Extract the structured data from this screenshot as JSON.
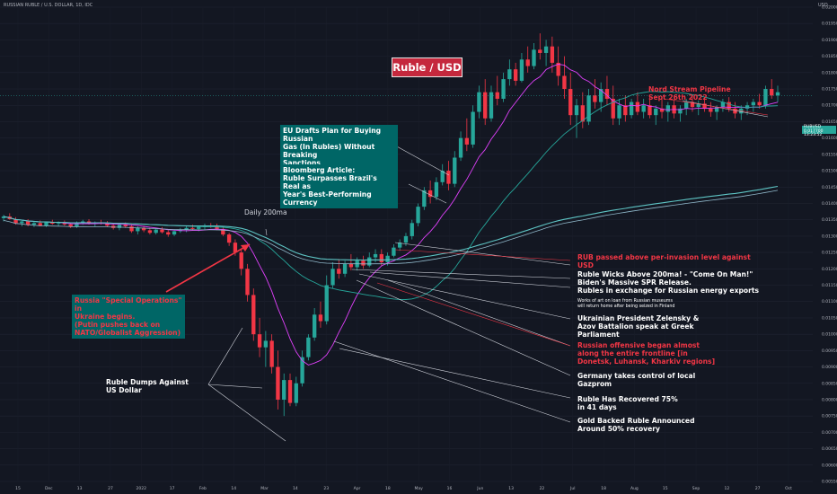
{
  "header": {
    "symbol_line": "RUSSIAN RUBLE / U.S. DOLLAR, 1D, IDC",
    "currency": "USD"
  },
  "title": "Ruble / USD",
  "price_tag": {
    "line1": "RUBUSD",
    "line2": "0.017700",
    "line3": "13:23:52"
  },
  "colors": {
    "up": "#26a69a",
    "down": "#f23645",
    "ma200": "#5ec4c4",
    "ma_pink": "#e040fb",
    "ma_teal": "#26a69a",
    "bg": "#131722"
  },
  "chart_data": {
    "type": "candlestick",
    "ylabels": [
      "0.020000",
      "0.019500",
      "0.019000",
      "0.018500",
      "0.018000",
      "0.017500",
      "0.017000",
      "0.016500",
      "0.016000",
      "0.015500",
      "0.015000",
      "0.014500",
      "0.014000",
      "0.013500",
      "0.013000",
      "0.012500",
      "0.012000",
      "0.011500",
      "0.011000",
      "0.010500",
      "0.010000",
      "0.009500",
      "0.009000",
      "0.008500",
      "0.008000",
      "0.007500",
      "0.007000",
      "0.006500",
      "0.006000",
      "0.005500"
    ],
    "xlabels": [
      "15",
      "Dec",
      "13",
      "27",
      "2022",
      "17",
      "Feb",
      "14",
      "Mar",
      "14",
      "23",
      "Apr",
      "18",
      "May",
      "16",
      "Jun",
      "13",
      "22",
      "Jul",
      "18",
      "Aug",
      "15",
      "Sep",
      "12",
      "27",
      "Oct"
    ],
    "ohlc": [
      [
        0.01355,
        0.01365,
        0.01345,
        0.0136
      ],
      [
        0.0136,
        0.0137,
        0.0135,
        0.01352
      ],
      [
        0.01352,
        0.01358,
        0.01335,
        0.0134
      ],
      [
        0.0134,
        0.0135,
        0.0133,
        0.01345
      ],
      [
        0.01345,
        0.01352,
        0.0133,
        0.01335
      ],
      [
        0.01335,
        0.01345,
        0.01328,
        0.0134
      ],
      [
        0.0134,
        0.01348,
        0.0133,
        0.01332
      ],
      [
        0.01332,
        0.01345,
        0.01328,
        0.01342
      ],
      [
        0.01342,
        0.0135,
        0.01335,
        0.01338
      ],
      [
        0.01338,
        0.01345,
        0.0133,
        0.0134
      ],
      [
        0.0134,
        0.01348,
        0.01332,
        0.01336
      ],
      [
        0.01336,
        0.01342,
        0.01325,
        0.0133
      ],
      [
        0.0133,
        0.01345,
        0.01325,
        0.0134
      ],
      [
        0.0134,
        0.0135,
        0.01335,
        0.01345
      ],
      [
        0.01345,
        0.01352,
        0.01335,
        0.01338
      ],
      [
        0.01338,
        0.01345,
        0.0133,
        0.01342
      ],
      [
        0.01342,
        0.0135,
        0.01335,
        0.0134
      ],
      [
        0.0134,
        0.01346,
        0.01328,
        0.01332
      ],
      [
        0.01332,
        0.0134,
        0.0132,
        0.01325
      ],
      [
        0.01325,
        0.01338,
        0.01318,
        0.01335
      ],
      [
        0.01335,
        0.01342,
        0.01325,
        0.0133
      ],
      [
        0.0133,
        0.01336,
        0.0131,
        0.01315
      ],
      [
        0.01315,
        0.0133,
        0.01305,
        0.01325
      ],
      [
        0.01325,
        0.01332,
        0.01312,
        0.01318
      ],
      [
        0.01318,
        0.01325,
        0.01305,
        0.0131
      ],
      [
        0.0131,
        0.01325,
        0.01305,
        0.0132
      ],
      [
        0.0132,
        0.01328,
        0.01308,
        0.01312
      ],
      [
        0.01312,
        0.01318,
        0.01298,
        0.01305
      ],
      [
        0.01305,
        0.0132,
        0.013,
        0.01315
      ],
      [
        0.01315,
        0.01325,
        0.0131,
        0.0132
      ],
      [
        0.0132,
        0.0133,
        0.01312,
        0.01325
      ],
      [
        0.01325,
        0.01335,
        0.01318,
        0.01322
      ],
      [
        0.01322,
        0.01332,
        0.01315,
        0.01328
      ],
      [
        0.01328,
        0.01338,
        0.0132,
        0.01332
      ],
      [
        0.01332,
        0.0134,
        0.01325,
        0.0133
      ],
      [
        0.0133,
        0.01338,
        0.01318,
        0.01322
      ],
      [
        0.01322,
        0.0133,
        0.013,
        0.01305
      ],
      [
        0.01305,
        0.0131,
        0.0127,
        0.0128
      ],
      [
        0.0128,
        0.0129,
        0.0124,
        0.0125
      ],
      [
        0.0125,
        0.0126,
        0.0118,
        0.012
      ],
      [
        0.012,
        0.01215,
        0.011,
        0.0112
      ],
      [
        0.0112,
        0.0114,
        0.0098,
        0.01
      ],
      [
        0.01,
        0.0105,
        0.0093,
        0.0096
      ],
      [
        0.0096,
        0.0101,
        0.009,
        0.0098
      ],
      [
        0.0098,
        0.01,
        0.0088,
        0.009
      ],
      [
        0.009,
        0.0095,
        0.0077,
        0.008
      ],
      [
        0.008,
        0.0088,
        0.0075,
        0.0086
      ],
      [
        0.0086,
        0.0088,
        0.0078,
        0.0079
      ],
      [
        0.0079,
        0.0087,
        0.0078,
        0.0085
      ],
      [
        0.0085,
        0.0095,
        0.0084,
        0.0093
      ],
      [
        0.0093,
        0.01,
        0.0092,
        0.0099
      ],
      [
        0.0099,
        0.0108,
        0.0098,
        0.0106
      ],
      [
        0.0106,
        0.011,
        0.0102,
        0.0104
      ],
      [
        0.0104,
        0.0118,
        0.0103,
        0.0115
      ],
      [
        0.0115,
        0.0122,
        0.0114,
        0.012
      ],
      [
        0.012,
        0.0123,
        0.0117,
        0.01185
      ],
      [
        0.01185,
        0.01225,
        0.01175,
        0.01215
      ],
      [
        0.01215,
        0.01245,
        0.01195,
        0.01205
      ],
      [
        0.01205,
        0.01235,
        0.01195,
        0.01225
      ],
      [
        0.01225,
        0.0124,
        0.012,
        0.0121
      ],
      [
        0.0121,
        0.0125,
        0.01205,
        0.01235
      ],
      [
        0.01235,
        0.0126,
        0.0122,
        0.01245
      ],
      [
        0.01245,
        0.0126,
        0.0121,
        0.0122
      ],
      [
        0.0122,
        0.0125,
        0.0121,
        0.0124
      ],
      [
        0.0124,
        0.01275,
        0.01235,
        0.01265
      ],
      [
        0.01265,
        0.0129,
        0.01255,
        0.0128
      ],
      [
        0.0128,
        0.0131,
        0.0127,
        0.013
      ],
      [
        0.013,
        0.0135,
        0.0129,
        0.0134
      ],
      [
        0.0134,
        0.014,
        0.0133,
        0.0139
      ],
      [
        0.0139,
        0.0145,
        0.0138,
        0.0144
      ],
      [
        0.0144,
        0.0147,
        0.014,
        0.0142
      ],
      [
        0.0142,
        0.0148,
        0.0141,
        0.01465
      ],
      [
        0.01465,
        0.0152,
        0.01455,
        0.015
      ],
      [
        0.015,
        0.0153,
        0.0144,
        0.0146
      ],
      [
        0.0146,
        0.0156,
        0.0145,
        0.0154
      ],
      [
        0.0154,
        0.0162,
        0.0153,
        0.016
      ],
      [
        0.016,
        0.0166,
        0.0156,
        0.0158
      ],
      [
        0.0158,
        0.017,
        0.0157,
        0.0168
      ],
      [
        0.0168,
        0.0176,
        0.0166,
        0.0174
      ],
      [
        0.0174,
        0.0178,
        0.0164,
        0.0166
      ],
      [
        0.0166,
        0.0176,
        0.0165,
        0.0174
      ],
      [
        0.0174,
        0.0179,
        0.017,
        0.0172
      ],
      [
        0.0172,
        0.018,
        0.0171,
        0.0178
      ],
      [
        0.0178,
        0.0184,
        0.0176,
        0.0181
      ],
      [
        0.0181,
        0.0183,
        0.0176,
        0.01775
      ],
      [
        0.01775,
        0.0186,
        0.0177,
        0.0184
      ],
      [
        0.0184,
        0.0188,
        0.018,
        0.0182
      ],
      [
        0.0182,
        0.0189,
        0.0181,
        0.0187
      ],
      [
        0.0187,
        0.0192,
        0.0184,
        0.0186
      ],
      [
        0.0186,
        0.019,
        0.0182,
        0.0188
      ],
      [
        0.0188,
        0.0191,
        0.018,
        0.0183
      ],
      [
        0.0183,
        0.0188,
        0.0176,
        0.0179
      ],
      [
        0.0179,
        0.0185,
        0.0172,
        0.0175
      ],
      [
        0.0175,
        0.018,
        0.0164,
        0.0167
      ],
      [
        0.0167,
        0.0172,
        0.016,
        0.017
      ],
      [
        0.017,
        0.0174,
        0.0163,
        0.0165
      ],
      [
        0.0165,
        0.0175,
        0.0164,
        0.0173
      ],
      [
        0.0173,
        0.0178,
        0.0169,
        0.0171
      ],
      [
        0.0171,
        0.0177,
        0.0168,
        0.0175
      ],
      [
        0.0175,
        0.0179,
        0.017,
        0.0172
      ],
      [
        0.0172,
        0.0176,
        0.0164,
        0.0166
      ],
      [
        0.0166,
        0.0172,
        0.0164,
        0.017
      ],
      [
        0.017,
        0.0173,
        0.0165,
        0.0167
      ],
      [
        0.0167,
        0.0172,
        0.0166,
        0.0171
      ],
      [
        0.0171,
        0.0174,
        0.0167,
        0.0168
      ],
      [
        0.0168,
        0.0172,
        0.0166,
        0.017
      ],
      [
        0.017,
        0.0173,
        0.0166,
        0.0167
      ],
      [
        0.0167,
        0.017,
        0.0164,
        0.0169
      ],
      [
        0.0169,
        0.0172,
        0.0166,
        0.0168
      ],
      [
        0.0168,
        0.0171,
        0.0165,
        0.017
      ],
      [
        0.017,
        0.0172,
        0.0166,
        0.01675
      ],
      [
        0.01675,
        0.017,
        0.0165,
        0.0169
      ],
      [
        0.0169,
        0.0172,
        0.0167,
        0.0171
      ],
      [
        0.0171,
        0.0173,
        0.0168,
        0.01695
      ],
      [
        0.01695,
        0.01715,
        0.0167,
        0.01705
      ],
      [
        0.01705,
        0.01725,
        0.0168,
        0.0169
      ],
      [
        0.0169,
        0.0171,
        0.01665,
        0.0168
      ],
      [
        0.0168,
        0.017,
        0.01655,
        0.01695
      ],
      [
        0.01695,
        0.0172,
        0.0168,
        0.0171
      ],
      [
        0.0171,
        0.01725,
        0.0168,
        0.0169
      ],
      [
        0.0169,
        0.0171,
        0.0166,
        0.01675
      ],
      [
        0.01675,
        0.017,
        0.01655,
        0.0169
      ],
      [
        0.0169,
        0.0171,
        0.0167,
        0.017
      ],
      [
        0.017,
        0.0172,
        0.0168,
        0.0171
      ],
      [
        0.0171,
        0.01735,
        0.0169,
        0.017
      ],
      [
        0.017,
        0.0176,
        0.0169,
        0.0175
      ],
      [
        0.0175,
        0.0178,
        0.0172,
        0.0173
      ],
      [
        0.0173,
        0.0176,
        0.0171,
        0.0174
      ]
    ]
  },
  "annotations": {
    "eu_plan": "EU Drafts Plan for Buying Russian\nGas (In Rubles) Without Breaking\nSanctions",
    "bloomberg": "Bloomberg Article:\nRuble Surpasses Brazil's Real as\nYear's Best-Performing Currency",
    "nord_stream": "Nord Stream Pipeline\nSept 26th 2022",
    "daily_200ma": "Daily 200ma",
    "rub_above": "RUB passed above per-invasion level against\nUSD",
    "wicks": "Ruble Wicks Above 200ma! - \"Come On Man!\"\nBiden's Massive SPR Release.\nRubles in exchange for Russian energy exports",
    "art_loan": "Works of art on loan from Russian museums\nwill return home after being seized in Finland",
    "zelensky": "Ukrainian President Zelensky &\nAzov Battalion speak at Greek\nParliament",
    "offensive": "Russian offensive began almost\nalong the entire frontline [in\nDonetsk, Luhansk, Kharkiv regions]",
    "gazprom": "Germany takes control of local\nGazprom",
    "recovered": "Ruble Has Recovered 75%\nin 41 days",
    "gold": "Gold Backed Ruble Announced\nAround 50% recovery",
    "special_ops": "Russia \"Special Operations\" in\nUkraine begins.\n(Putin pushes back on\nNATO/Globalist Aggression)",
    "dumps": "Ruble Dumps Against\nUS Dollar"
  }
}
